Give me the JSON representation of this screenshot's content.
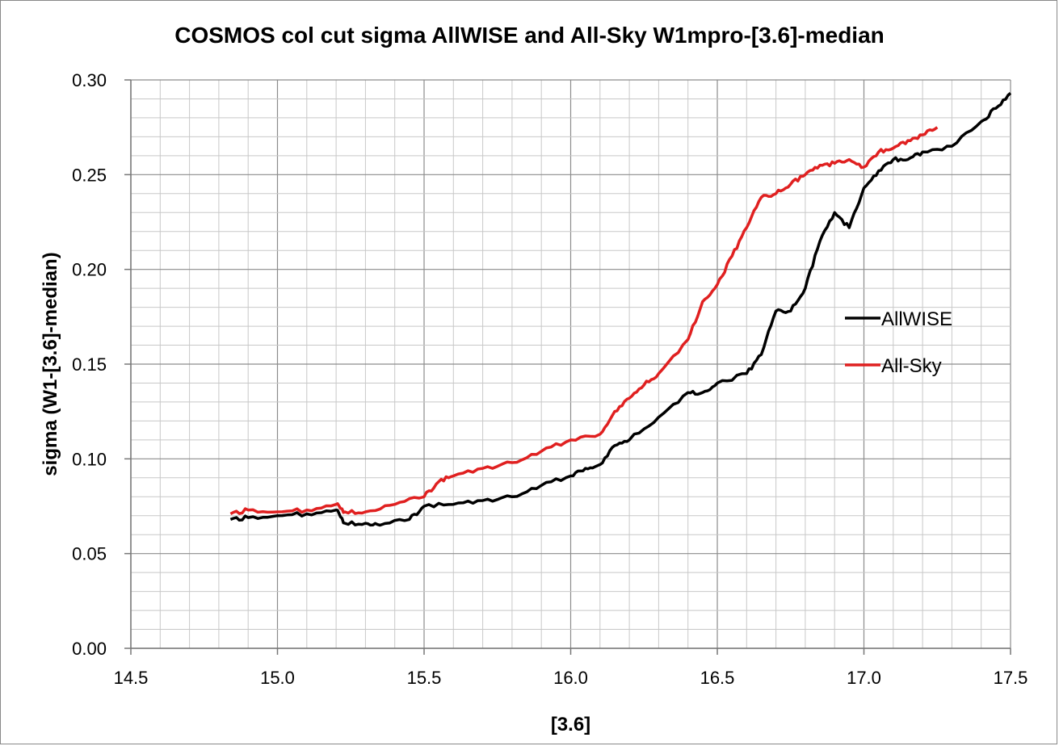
{
  "chart_data": {
    "type": "line",
    "title": "COSMOS col cut sigma AllWISE and All-Sky W1mpro-[3.6]-median",
    "xlabel": "[3.6]",
    "ylabel": "sigma (W1-[3.6]-median)",
    "xlim": [
      14.5,
      17.5
    ],
    "ylim": [
      0.0,
      0.3
    ],
    "x_ticks": [
      "14.5",
      "15.0",
      "15.5",
      "16.0",
      "16.5",
      "17.0",
      "17.5"
    ],
    "y_ticks": [
      "0.00",
      "0.05",
      "0.10",
      "0.15",
      "0.20",
      "0.25",
      "0.30"
    ],
    "grid": true,
    "legend_position": "right",
    "series": [
      {
        "name": "AllWISE",
        "color": "#000000",
        "x": [
          14.84,
          14.9,
          15.0,
          15.1,
          15.2,
          15.23,
          15.3,
          15.35,
          15.45,
          15.5,
          15.6,
          15.7,
          15.8,
          15.9,
          16.0,
          16.05,
          16.1,
          16.15,
          16.2,
          16.3,
          16.4,
          16.45,
          16.5,
          16.6,
          16.65,
          16.7,
          16.75,
          16.8,
          16.85,
          16.9,
          16.95,
          17.0,
          17.05,
          17.1,
          17.15,
          17.2,
          17.3,
          17.4,
          17.45,
          17.5
        ],
        "y": [
          0.068,
          0.069,
          0.07,
          0.071,
          0.073,
          0.066,
          0.066,
          0.065,
          0.068,
          0.075,
          0.076,
          0.078,
          0.08,
          0.086,
          0.091,
          0.095,
          0.097,
          0.107,
          0.11,
          0.122,
          0.135,
          0.135,
          0.14,
          0.145,
          0.155,
          0.178,
          0.178,
          0.19,
          0.215,
          0.23,
          0.222,
          0.243,
          0.252,
          0.258,
          0.258,
          0.262,
          0.265,
          0.278,
          0.285,
          0.293
        ]
      },
      {
        "name": "All-Sky",
        "color": "#e02020",
        "x": [
          14.84,
          14.9,
          15.0,
          15.1,
          15.2,
          15.23,
          15.3,
          15.4,
          15.5,
          15.55,
          15.6,
          15.7,
          15.8,
          15.9,
          16.0,
          16.1,
          16.15,
          16.2,
          16.25,
          16.3,
          16.4,
          16.45,
          16.5,
          16.55,
          16.6,
          16.65,
          16.7,
          16.75,
          16.8,
          16.85,
          16.9,
          16.95,
          17.0,
          17.05,
          17.1,
          17.15,
          17.2,
          17.25
        ],
        "y": [
          0.071,
          0.073,
          0.072,
          0.073,
          0.076,
          0.072,
          0.072,
          0.076,
          0.08,
          0.088,
          0.091,
          0.095,
          0.098,
          0.104,
          0.11,
          0.113,
          0.125,
          0.132,
          0.139,
          0.145,
          0.163,
          0.183,
          0.192,
          0.207,
          0.222,
          0.238,
          0.24,
          0.245,
          0.25,
          0.255,
          0.256,
          0.258,
          0.254,
          0.262,
          0.264,
          0.268,
          0.271,
          0.275
        ]
      }
    ]
  }
}
